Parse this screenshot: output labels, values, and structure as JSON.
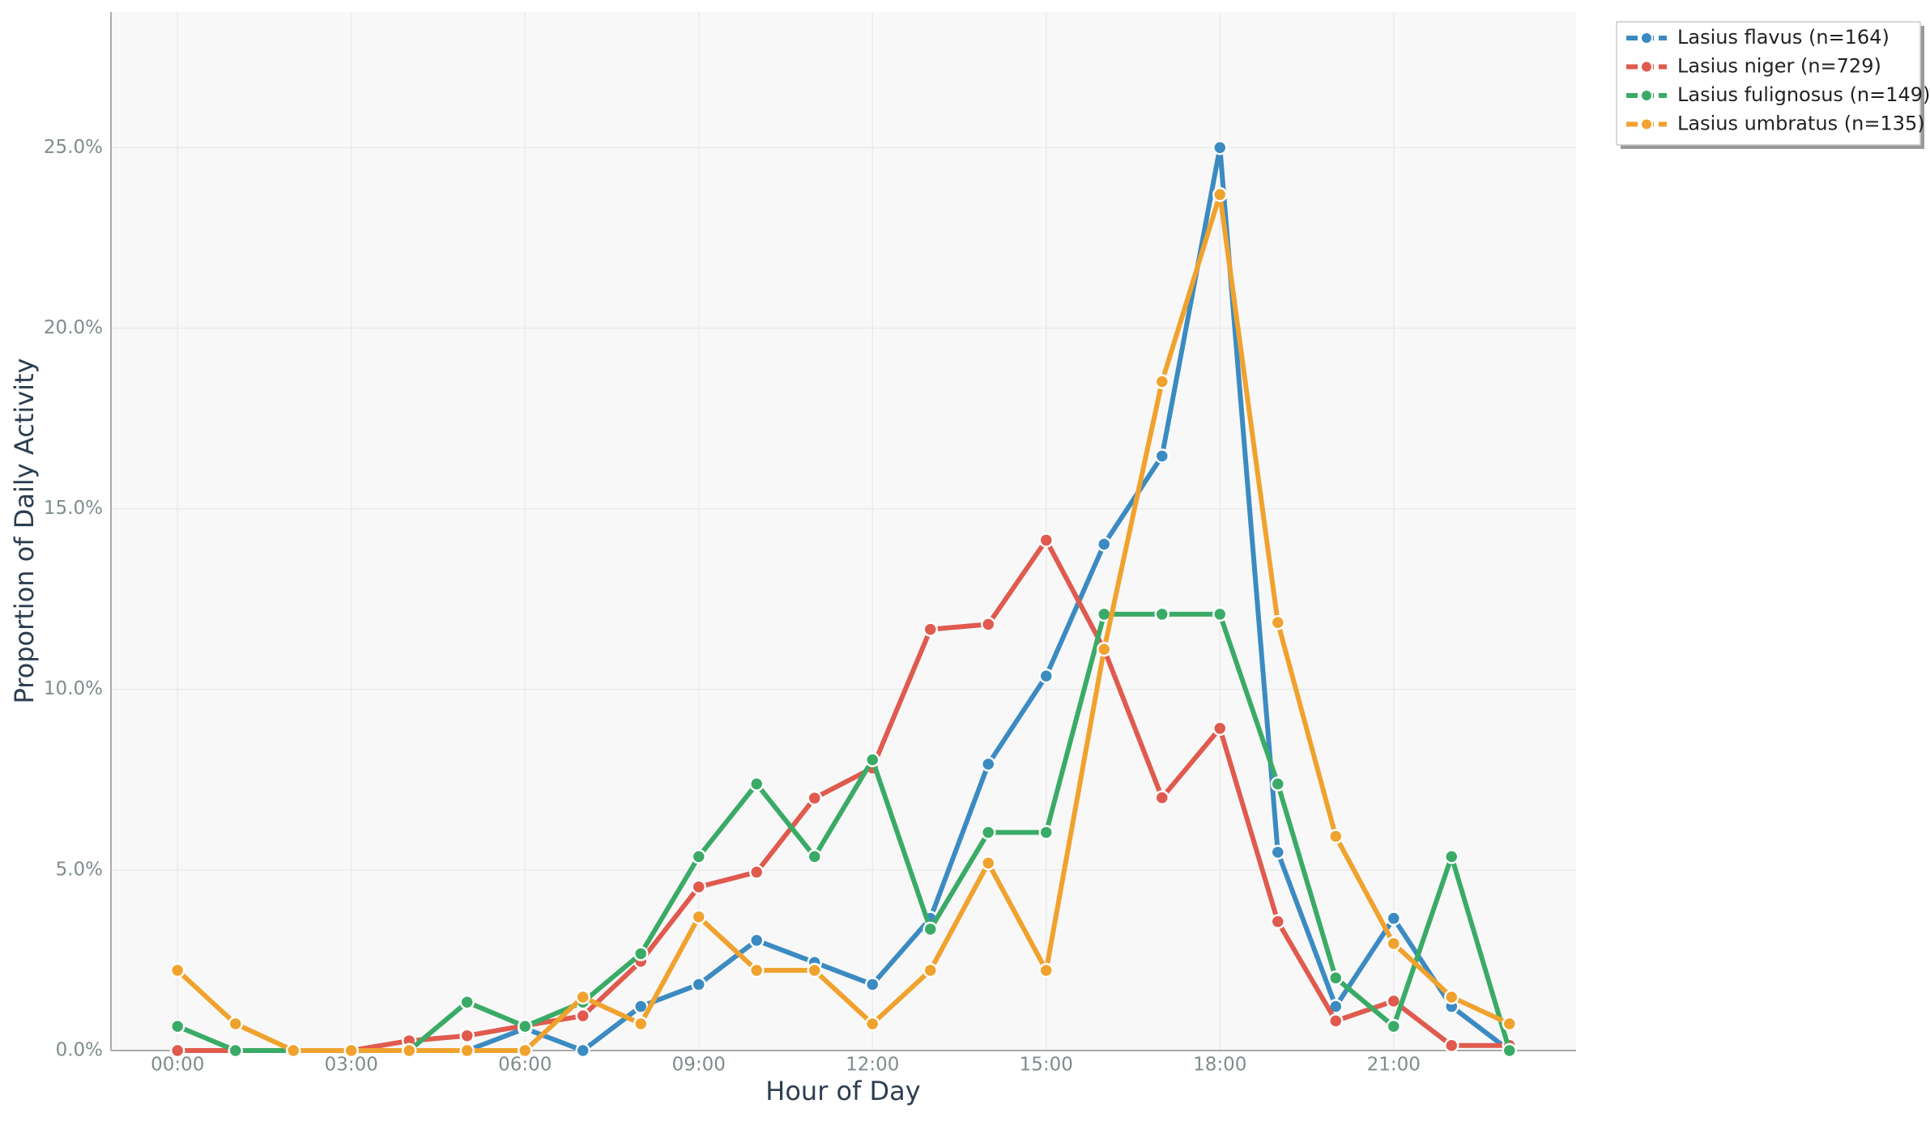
{
  "chart_data": {
    "type": "line",
    "x_label": "Hour of Day",
    "y_label": "Proportion of Daily Activity",
    "x": [
      0,
      1,
      2,
      3,
      4,
      5,
      6,
      7,
      8,
      9,
      10,
      11,
      12,
      13,
      14,
      15,
      16,
      17,
      18,
      19,
      20,
      21,
      22,
      23
    ],
    "xlim": [
      -1.15,
      24.15
    ],
    "xticks": [
      {
        "value": 0,
        "label": "00:00"
      },
      {
        "value": 3,
        "label": "03:00"
      },
      {
        "value": 6,
        "label": "06:00"
      },
      {
        "value": 9,
        "label": "09:00"
      },
      {
        "value": 12,
        "label": "12:00"
      },
      {
        "value": 15,
        "label": "15:00"
      },
      {
        "value": 18,
        "label": "18:00"
      },
      {
        "value": 21,
        "label": "21:00"
      }
    ],
    "ylim": [
      0,
      28.75
    ],
    "yticks": [
      {
        "value": 0,
        "label": "0.0%"
      },
      {
        "value": 5,
        "label": "5.0%"
      },
      {
        "value": 10,
        "label": "10.0%"
      },
      {
        "value": 15,
        "label": "15.0%"
      },
      {
        "value": 20,
        "label": "20.0%"
      },
      {
        "value": 25,
        "label": "25.0%"
      }
    ],
    "grid": true,
    "legend_position": "outside-upper-right",
    "series": [
      {
        "name": "Lasius flavus (n=164)",
        "color": "#3b8bc2",
        "values": [
          0,
          0,
          0,
          0,
          0,
          0,
          0.61,
          0,
          1.22,
          1.83,
          3.05,
          2.44,
          1.83,
          3.66,
          7.93,
          10.37,
          14.02,
          16.46,
          25.0,
          5.49,
          1.22,
          3.66,
          1.22,
          0
        ]
      },
      {
        "name": "Lasius niger (n=729)",
        "color": "#e05a4e",
        "values": [
          0,
          0,
          0,
          0,
          0.27,
          0.41,
          0.69,
          0.96,
          2.47,
          4.53,
          4.94,
          6.99,
          7.82,
          11.66,
          11.8,
          14.13,
          11.11,
          7.0,
          8.92,
          3.57,
          0.82,
          1.37,
          0.14,
          0.14
        ]
      },
      {
        "name": "Lasius fulignosus (n=149)",
        "color": "#3aab66",
        "values": [
          0.67,
          0,
          0,
          0,
          0,
          1.34,
          0.67,
          1.34,
          2.68,
          5.37,
          7.38,
          5.37,
          8.05,
          3.36,
          6.04,
          6.04,
          12.08,
          12.08,
          12.08,
          7.38,
          2.01,
          0.67,
          5.37,
          0
        ]
      },
      {
        "name": "Lasius umbratus (n=135)",
        "color": "#f0a22e",
        "values": [
          2.22,
          0.74,
          0,
          0,
          0,
          0,
          0,
          1.48,
          0.74,
          3.7,
          2.22,
          2.22,
          0.74,
          2.22,
          5.19,
          2.22,
          11.11,
          18.52,
          23.7,
          11.85,
          5.93,
          2.96,
          1.48,
          0.74
        ]
      }
    ]
  }
}
